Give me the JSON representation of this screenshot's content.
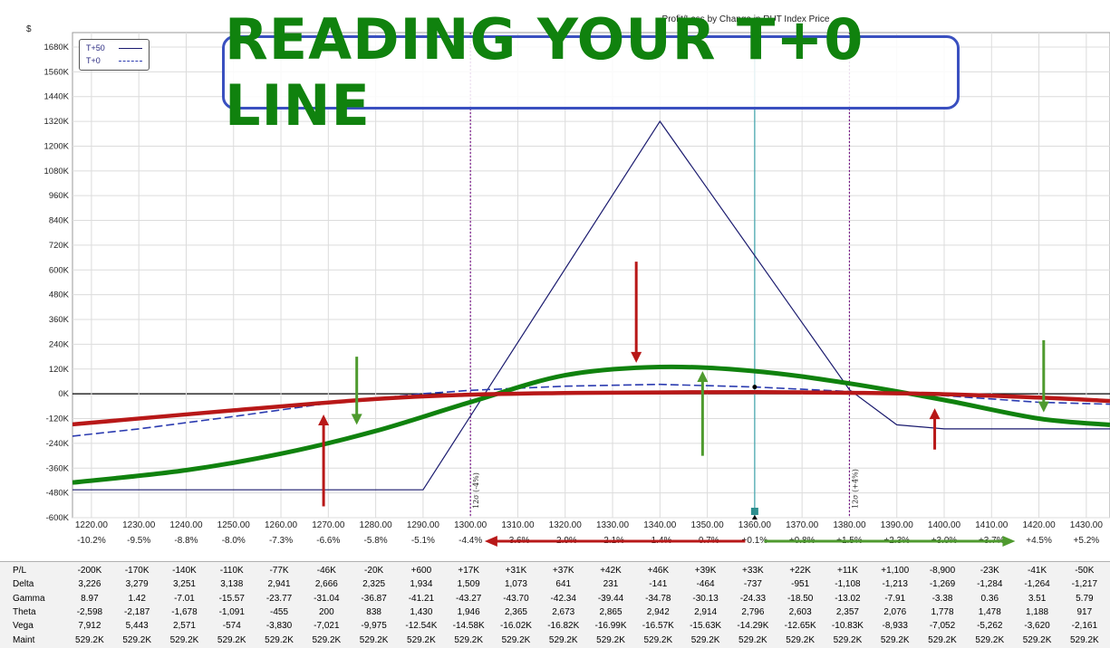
{
  "chart_data": {
    "type": "line",
    "title": "Profit/Loss by Change in RUT Index Price",
    "ylabel": "$",
    "xlim": [
      1216,
      1435
    ],
    "ylim": [
      -600000,
      1750000
    ],
    "yticks": [
      -600000,
      -480000,
      -360000,
      -240000,
      -120000,
      0,
      120000,
      240000,
      360000,
      480000,
      600000,
      720000,
      840000,
      960000,
      1080000,
      1200000,
      1320000,
      1440000,
      1560000,
      1680000
    ],
    "ytick_labels": [
      "-600K",
      "-480K",
      "-360K",
      "-240K",
      "-120K",
      "0K",
      "120K",
      "240K",
      "360K",
      "480K",
      "600K",
      "720K",
      "840K",
      "960K",
      "1080K",
      "1200K",
      "1320K",
      "1440K",
      "1560K",
      "1680K"
    ],
    "xticks": [
      1220,
      1230,
      1240,
      1250,
      1260,
      1270,
      1280,
      1290,
      1300,
      1310,
      1320,
      1330,
      1340,
      1350,
      1360,
      1370,
      1380,
      1390,
      1400,
      1410,
      1420,
      1430
    ],
    "xtick_labels": [
      "1220.00",
      "1230.00",
      "1240.00",
      "1250.00",
      "1260.00",
      "1270.00",
      "1280.00",
      "1290.00",
      "1300.00",
      "1310.00",
      "1320.00",
      "1330.00",
      "1340.00",
      "1350.00",
      "1360.00",
      "1370.00",
      "1380.00",
      "1390.00",
      "1400.00",
      "1410.00",
      "1420.00",
      "1430.00"
    ],
    "pct_labels": [
      "-10.2%",
      "-9.5%",
      "-8.8%",
      "-8.0%",
      "-7.3%",
      "-6.6%",
      "-5.8%",
      "-5.1%",
      "-4.4%",
      "-3.6%",
      "-2.9%",
      "-2.1%",
      "-1.4%",
      "-0.7%",
      "+0.1%",
      "+0.8%",
      "+1.5%",
      "+2.3%",
      "+3.0%",
      "+3.7%",
      "+4.5%",
      "+5.2%"
    ],
    "grid": true,
    "legend_position": "top-left",
    "series": [
      {
        "name": "T+50",
        "style": "solid",
        "color": "#1a1a6e",
        "x": [
          1216,
          1290,
          1340,
          1380,
          1390,
          1400,
          1435
        ],
        "y": [
          -465000,
          -465000,
          1320000,
          20000,
          -150000,
          -170000,
          -170000
        ]
      },
      {
        "name": "T+0",
        "style": "dashed",
        "color": "#2b3bb0",
        "x": [
          1216,
          1230,
          1250,
          1270,
          1290,
          1300,
          1320,
          1340,
          1360,
          1380,
          1400,
          1420,
          1435
        ],
        "y": [
          -205000,
          -170000,
          -110000,
          -46000,
          600,
          17000,
          37000,
          46000,
          33000,
          11000,
          -8900,
          -41000,
          -50000
        ]
      }
    ],
    "markers": [
      {
        "x": 1300,
        "label": "12σ (-4%)",
        "color": "#7a1a8a"
      },
      {
        "x": 1380,
        "label": "12σ (+4%)",
        "color": "#7a1a8a"
      }
    ],
    "current_price": 1360,
    "current_price_color": "#4aa8b0"
  },
  "annotations": {
    "overlay_title": "READING YOUR T+0 LINE",
    "green_curve_color": "#10820e",
    "red_curve_color": "#b81818",
    "green_curve": {
      "x": [
        1216,
        1240,
        1260,
        1280,
        1300,
        1320,
        1340,
        1360,
        1380,
        1400,
        1420,
        1435
      ],
      "y": [
        -430000,
        -370000,
        -290000,
        -180000,
        -40000,
        90000,
        130000,
        110000,
        50000,
        -30000,
        -120000,
        -150000
      ]
    },
    "red_curve": {
      "x": [
        1216,
        1250,
        1280,
        1300,
        1320,
        1340,
        1360,
        1380,
        1400,
        1420,
        1435
      ],
      "y": [
        -148000,
        -80000,
        -25000,
        -4000,
        4000,
        7000,
        8000,
        5000,
        -2000,
        -18000,
        -35000
      ]
    },
    "arrows": [
      {
        "color": "#b81818",
        "x": 1335,
        "y_from": 640000,
        "y_to": 150000
      },
      {
        "color": "#b81818",
        "x": 1269,
        "y_from": -545000,
        "y_to": -100000
      },
      {
        "color": "#b81818",
        "x": 1398,
        "y_from": -270000,
        "y_to": -70000
      },
      {
        "color": "#4e9a2e",
        "x": 1276,
        "y_from": 180000,
        "y_to": -150000
      },
      {
        "color": "#4e9a2e",
        "x": 1349,
        "y_from": -300000,
        "y_to": 110000
      },
      {
        "color": "#4e9a2e",
        "x": 1421,
        "y_from": 260000,
        "y_to": -90000
      }
    ],
    "horiz_arrows": [
      {
        "color": "#b81818",
        "x_from": 1358,
        "x_to": 1303
      },
      {
        "color": "#4e9a2e",
        "x_from": 1362,
        "x_to": 1415
      }
    ]
  },
  "stats": {
    "rows": [
      {
        "label": "P/L",
        "values": [
          "-200K",
          "-170K",
          "-140K",
          "-110K",
          "-77K",
          "-46K",
          "-20K",
          "+600",
          "+17K",
          "+31K",
          "+37K",
          "+42K",
          "+46K",
          "+39K",
          "+33K",
          "+22K",
          "+11K",
          "+1,100",
          "-8,900",
          "-23K",
          "-41K",
          "-50K"
        ]
      },
      {
        "label": "Delta",
        "values": [
          "3,226",
          "3,279",
          "3,251",
          "3,138",
          "2,941",
          "2,666",
          "2,325",
          "1,934",
          "1,509",
          "1,073",
          "641",
          "231",
          "-141",
          "-464",
          "-737",
          "-951",
          "-1,108",
          "-1,213",
          "-1,269",
          "-1,284",
          "-1,264",
          "-1,217"
        ]
      },
      {
        "label": "Gamma",
        "values": [
          "8.97",
          "1.42",
          "-7.01",
          "-15.57",
          "-23.77",
          "-31.04",
          "-36.87",
          "-41.21",
          "-43.27",
          "-43.70",
          "-42.34",
          "-39.44",
          "-34.78",
          "-30.13",
          "-24.33",
          "-18.50",
          "-13.02",
          "-7.91",
          "-3.38",
          "0.36",
          "3.51",
          "5.79"
        ]
      },
      {
        "label": "Theta",
        "values": [
          "-2,598",
          "-2,187",
          "-1,678",
          "-1,091",
          "-455",
          "200",
          "838",
          "1,430",
          "1,946",
          "2,365",
          "2,673",
          "2,865",
          "2,942",
          "2,914",
          "2,796",
          "2,603",
          "2,357",
          "2,076",
          "1,778",
          "1,478",
          "1,188",
          "917"
        ]
      },
      {
        "label": "Vega",
        "values": [
          "7,912",
          "5,443",
          "2,571",
          "-574",
          "-3,830",
          "-7,021",
          "-9,975",
          "-12.54K",
          "-14.58K",
          "-16.02K",
          "-16.82K",
          "-16.99K",
          "-16.57K",
          "-15.63K",
          "-14.29K",
          "-12.65K",
          "-10.83K",
          "-8,933",
          "-7,052",
          "-5,262",
          "-3,620",
          "-2,161"
        ]
      },
      {
        "label": "Maint",
        "values": [
          "529.2K",
          "529.2K",
          "529.2K",
          "529.2K",
          "529.2K",
          "529.2K",
          "529.2K",
          "529.2K",
          "529.2K",
          "529.2K",
          "529.2K",
          "529.2K",
          "529.2K",
          "529.2K",
          "529.2K",
          "529.2K",
          "529.2K",
          "529.2K",
          "529.2K",
          "529.2K",
          "529.2K",
          "529.2K"
        ]
      }
    ]
  }
}
